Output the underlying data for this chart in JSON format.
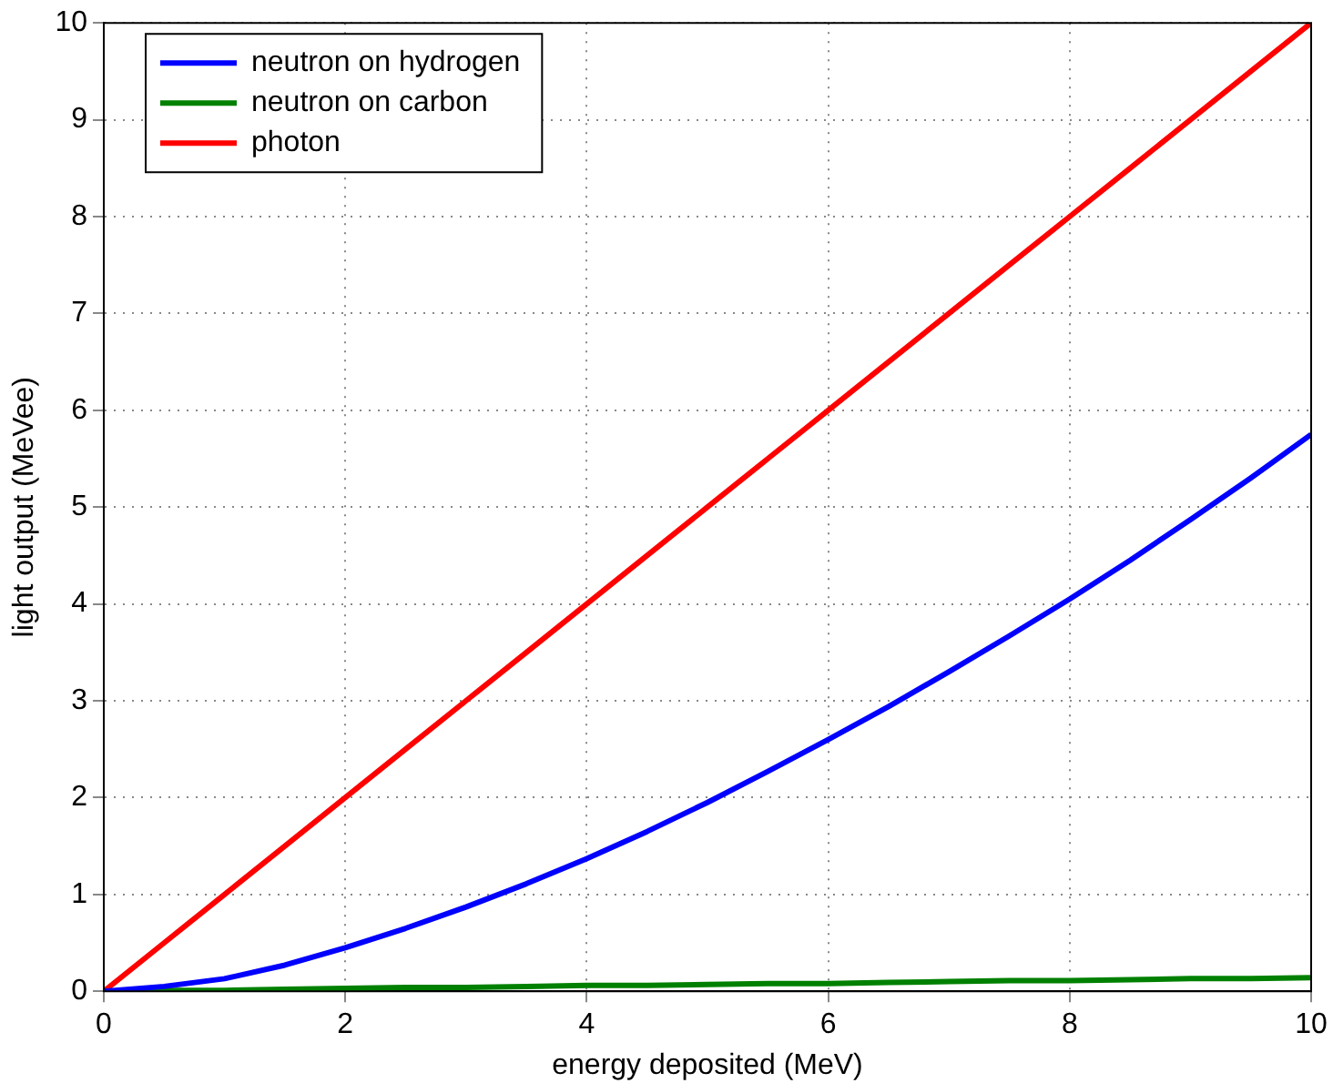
{
  "chart_data": {
    "type": "line",
    "xlabel": "energy deposited (MeV)",
    "ylabel": "light output (MeVee)",
    "x": [
      0,
      0.5,
      1,
      1.5,
      2,
      2.5,
      3,
      3.5,
      4,
      4.5,
      5,
      5.5,
      6,
      6.5,
      7,
      7.5,
      8,
      8.5,
      9,
      9.5,
      10
    ],
    "xlim": [
      0,
      10
    ],
    "xticks": [
      0,
      2,
      4,
      6,
      8,
      10
    ],
    "ylim": [
      0,
      10
    ],
    "yticks": [
      0,
      1,
      2,
      3,
      4,
      5,
      6,
      7,
      8,
      9,
      10
    ],
    "grid": true,
    "legend": "top left",
    "marker": "none",
    "line_style": "solid",
    "series": [
      {
        "name": "neutron on hydrogen",
        "color": "#0000ff",
        "values": [
          0,
          0.05,
          0.13,
          0.27,
          0.45,
          0.65,
          0.87,
          1.11,
          1.37,
          1.65,
          1.95,
          2.27,
          2.6,
          2.94,
          3.3,
          3.67,
          4.05,
          4.45,
          4.87,
          5.3,
          5.75
        ]
      },
      {
        "name": "neutron on carbon",
        "color": "#008000",
        "values": [
          0,
          0.01,
          0.01,
          0.02,
          0.03,
          0.04,
          0.04,
          0.05,
          0.06,
          0.06,
          0.07,
          0.08,
          0.08,
          0.09,
          0.1,
          0.11,
          0.11,
          0.12,
          0.13,
          0.13,
          0.14
        ]
      },
      {
        "name": "photon",
        "color": "#ff0000",
        "values": [
          0,
          0.5,
          1,
          1.5,
          2,
          2.5,
          3,
          3.5,
          4,
          4.5,
          5,
          5.5,
          6,
          6.5,
          7,
          7.5,
          8,
          8.5,
          9,
          9.5,
          10
        ]
      }
    ]
  }
}
